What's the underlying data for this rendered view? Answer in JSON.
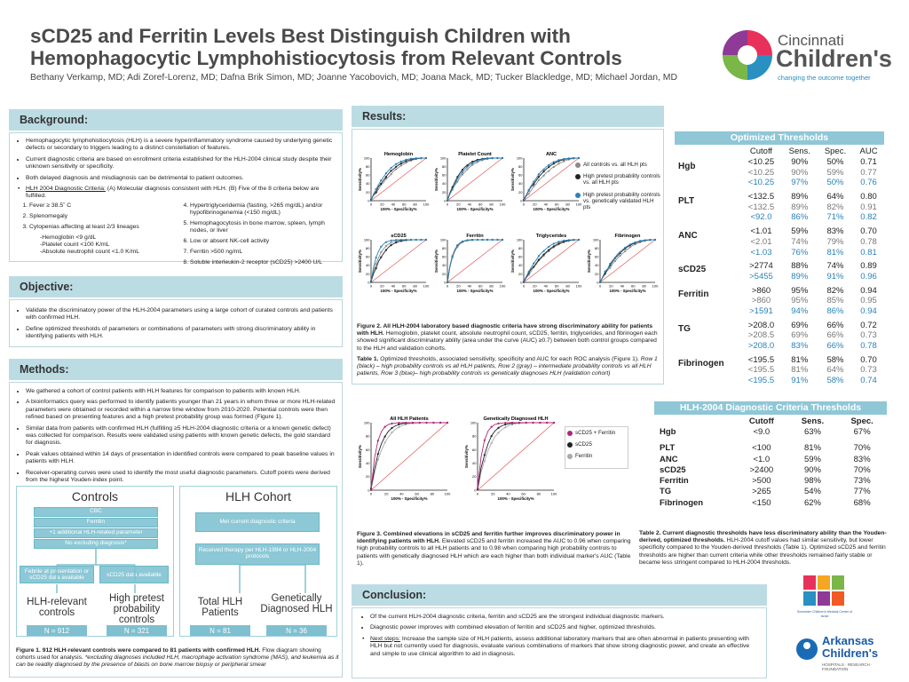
{
  "title": "sCD25 and Ferritin Levels Best Distinguish Children with Hemophagocytic Lymphohistiocytosis from Relevant Controls",
  "authors": "Bethany Verkamp, MD; Adi Zoref-Lorenz, MD; Dafna Brik Simon, MD; Joanne Yacobovich, MD; Joana Mack, MD; Tucker Blackledge, MD; Michael Jordan, MD",
  "logo_cincinnati": {
    "line1": "Cincinnati",
    "line2": "Children's",
    "tagline": "changing the outcome together"
  },
  "logo_schneider": "Schneider Children's Medical Center of Israel",
  "logo_arkansas": {
    "line1": "Arkansas",
    "line2": "Children's",
    "tagline": "HOSPITALS · RESEARCH · FOUNDATION"
  },
  "background": {
    "header": "Background:",
    "bullets": [
      "Hemophagocytic lymphohistiocytosis (HLH) is a severe hyperinflammatory syndrome caused by underlying genetic defects or secondary to triggers leading to a distinct constellation of features.",
      "Current diagnostic criteria are based on enrollment criteria established for the HLH-2004 clinical study despite their unknown sensitivity or specificity.",
      "Both delayed diagnosis and misdiagnosis can be detrimental to patient outcomes."
    ],
    "criteria_lead_u": "HLH 2004 Diagnostic Criteria:",
    "criteria_lead_rest": " (A) Molecular diagnosis consistent with HLH. (B) Five of the 8 criteria below are fulfilled.",
    "criteria_left": [
      "Fever ≥ 38.5˚ C",
      "Splenomegaly",
      "Cytopenias affecting at least 2/3 lineages"
    ],
    "criteria_sub": [
      "-Hemoglobin <9 g/dL",
      "-Platelet count <100 K/mL",
      "-Absolute neutrophil count <1.0 K/mL"
    ],
    "criteria_right": [
      "Hypertriglyceridemia (fasting, >265 mg/dL) and/or hypofibrinogenemia (<150 mg/dL)",
      "Hemophagocytosis in bone marrow, spleen, lymph nodes, or liver",
      "Low or absent NK-cell activity",
      "Ferritin >500 ng/mL",
      "Soluble interleukin-2 receptor (sCD25) >2400 U/L"
    ]
  },
  "objective": {
    "header": "Objective:",
    "bullets": [
      "Validate the discriminatory power of the HLH-2004 parameters using a large cohort of curated controls and patients with confirmed HLH.",
      "Define optimized thresholds of parameters or combinations of parameters with strong discriminatory ability in identifying patients with HLH."
    ]
  },
  "methods": {
    "header": "Methods:",
    "bullets": [
      "We gathered a cohort of control patients with HLH features for comparison to patients with known HLH.",
      "A bioinformatics query was performed to identify patients younger than 21 years in whom three or more HLH-related parameters were obtained or recorded within a narrow time window from 2010-2020. Potential controls were then refined based on presenting features and a high pretest probability group was formed (Figure 1).",
      "Similar data from patients with confirmed HLH (fulfilling ≥5 HLH-2004 diagnostic criteria or a known genetic defect) was collected for comparison. Results were validated using patients with known genetic defects, the gold standard for diagnosis.",
      "Peak values obtained within 14 days of presentation in identified controls were compared to peak baseline values in patients with HLH.",
      "Receiver-operating curves were used to identify the most useful diagnostic parameters. Cutoff points were derived from the highest Youden-index point."
    ]
  },
  "flow": {
    "controls_title": "Controls",
    "cohort_title": "HLH Cohort",
    "controls_boxes": [
      "CBC",
      "Ferritin",
      "+1 additional HLH-related parameter",
      "No excluding diagnosis*"
    ],
    "febrile": "Febrile at presentation or sCD25 data available",
    "scd25_avail": "sCD25 data available",
    "cohort_boxes": [
      "Met current diagnostic criteria",
      "Received therapy per HLH-1994 or HLH-2004 protocols"
    ],
    "groups": [
      {
        "label": "HLH-relevant controls",
        "n": "N = 912"
      },
      {
        "label": "High pretest probability controls",
        "n": "N = 321"
      },
      {
        "label": "Total HLH Patients",
        "n": "N = 81"
      },
      {
        "label": "Genetically Diagnosed HLH",
        "n": "N = 36"
      }
    ],
    "caption_bold": "Figure 1. 912 HLH-relevant controls were compared to 81 patients with confirmed HLH.",
    "caption_rest": " Flow diagram showing cohorts used for analysis. ",
    "caption_ital": "*excluding diagnoses included HLH, macrophage activation syndrome (MAS), and leukemia as it can be readily diagnosed by the presence of blasts on bone marrow biopsy or peripheral smear"
  },
  "results": {
    "header": "Results:",
    "axis_x": "100% - Specificity%",
    "axis_y": "Sensitivity%",
    "ticks": [
      "0",
      "20",
      "40",
      "60",
      "80",
      "100"
    ],
    "fig2_plots": [
      "Hemoglobin",
      "Platelet Count",
      "ANC",
      "sCD25",
      "Ferritin",
      "Triglycerides",
      "Fibrinogen"
    ],
    "fig2_legend": [
      "All controls vs. all HLH pts",
      "High pretest probability controls vs. all HLH pts",
      "High pretest probability controls vs. genetically validated HLH pts"
    ],
    "fig2_caption_bold": "Figure 2. All HLH-2004 laboratory based diagnostic criteria have strong discriminatory ability for patients with HLH.",
    "fig2_caption_rest": " Hemoglobin, platelet count, absolute neutrophil count, sCD25, ferritin, triglycerides, and fibrinogen each showed significant discriminatory ability (area under the curve (AUC) ≥0.7) between both control groups compared to the HLH and validation cohorts.",
    "tab1_caption_bold": "Table 1.",
    "tab1_caption_rest": " Optimized thresholds, associated sensitivity, specificity and AUC for each ROC analysis (Figure 1).",
    "tab1_caption_ital": " Row 1 (black) – high probability controls vs all HLH patients, Row 2 (gray) – intermediate probability controls vs all HLH patients, Row 3 (blue)– high probability controls vs genetically diagnoses HLH (validation cohort)",
    "fig3_plots": [
      "All HLH Patients",
      "Genetically Diagnosed HLH"
    ],
    "fig3_legend": [
      "sCD25 + Ferritin",
      "sCD25",
      "Ferritin"
    ],
    "fig3_caption_bold": "Figure 3. Combined elevations in sCD25 and ferritin further improves discriminatory power in identifying patients with HLH.",
    "fig3_caption_rest": " Elevated sCD25 and ferritin increased the AUC to 0.96 when comparing high probability controls to all HLH patients and to 0.98 when comparing high probability controls to patients with genetically diagnosed HLH which are each higher than both individual marker's AUC (Table 1).",
    "tab2_caption_bold": "Table 2. Current diagnostic thresholds have less discriminatory ability than the Youden-derived, optimized thresholds.",
    "tab2_caption_rest": " HLH-2004 cutoff values had similar sensitivity, but lower specificity compared to the Youden-derived thresholds (Table 1). Optimized sCD25 and ferritin thresholds are higher than current criteria while other thresholds remained fairly stable or became less stringent compared to HLH-2004 thresholds."
  },
  "table1": {
    "title": "Optimized Thresholds",
    "columns": [
      "Cutoff",
      "Sens.",
      "Spec.",
      "AUC"
    ],
    "groups": [
      {
        "label": "Hgb",
        "rows": [
          [
            "<10.25",
            "90%",
            "50%",
            "0.71"
          ],
          [
            "<10.25",
            "90%",
            "59%",
            "0.77"
          ],
          [
            "<10.25",
            "97%",
            "50%",
            "0.76"
          ]
        ]
      },
      {
        "label": "PLT",
        "rows": [
          [
            "<132.5",
            "89%",
            "64%",
            "0.80"
          ],
          [
            "<132.5",
            "89%",
            "82%",
            "0.91"
          ],
          [
            "<92.0",
            "86%",
            "71%",
            "0.82"
          ]
        ]
      },
      {
        "label": "ANC",
        "rows": [
          [
            "<1.01",
            "59%",
            "83%",
            "0.70"
          ],
          [
            "<2.01",
            "74%",
            "79%",
            "0.78"
          ],
          [
            "<1.03",
            "76%",
            "81%",
            "0.81"
          ]
        ]
      },
      {
        "label": "sCD25",
        "rows": [
          [
            ">2774",
            "88%",
            "74%",
            "0.89"
          ],
          [
            ">5455",
            "89%",
            "91%",
            "0.96"
          ]
        ]
      },
      {
        "label": "Ferritin",
        "rows": [
          [
            ">860",
            "95%",
            "82%",
            "0.94"
          ],
          [
            ">860",
            "95%",
            "85%",
            "0.95"
          ],
          [
            ">1591",
            "94%",
            "86%",
            "0.94"
          ]
        ]
      },
      {
        "label": "TG",
        "rows": [
          [
            ">208.0",
            "69%",
            "66%",
            "0.72"
          ],
          [
            ">208.5",
            "69%",
            "66%",
            "0.73"
          ],
          [
            ">208.0",
            "83%",
            "66%",
            "0.78"
          ]
        ]
      },
      {
        "label": "Fibrinogen",
        "rows": [
          [
            "<195.5",
            "81%",
            "58%",
            "0.70"
          ],
          [
            "<195.5",
            "81%",
            "64%",
            "0.73"
          ],
          [
            "<195.5",
            "91%",
            "58%",
            "0.74"
          ]
        ]
      }
    ]
  },
  "table2": {
    "title": "HLH-2004 Diagnostic Criteria Thresholds",
    "columns": [
      "Cutoff",
      "Sens.",
      "Spec."
    ],
    "rows": [
      [
        "Hgb",
        "<9.0",
        "63%",
        "67%"
      ],
      [
        "PLT",
        "<100",
        "81%",
        "70%"
      ],
      [
        "ANC",
        "<1.0",
        "59%",
        "83%"
      ],
      [
        "sCD25",
        ">2400",
        "90%",
        "70%"
      ],
      [
        "Ferritin",
        ">500",
        "98%",
        "73%"
      ],
      [
        "TG",
        ">265",
        "54%",
        "77%"
      ],
      [
        "Fibrinogen",
        "<150",
        "62%",
        "68%"
      ]
    ]
  },
  "conclusion": {
    "header": "Conclusion:",
    "bullets": [
      "Of the current HLH-2004 diagnostic criteria, ferritin and sCD25 are the strongest individual diagnostic markers.",
      "Diagnostic power improves with combined elevation of ferritin and sCD25 and higher, optimized thresholds."
    ],
    "next_steps_u": "Next steps:",
    "next_steps_rest": " Increase the sample size of HLH patients, assess additional laboratory markers that are often abnormal in patients presenting with HLH but not currently used for diagnosis, evaluate various combinations of markers that show strong diagnostic power, and create an effective and simple to use clinical algorithm to aid in diagnosis."
  },
  "colors": {
    "black": "#222222",
    "gray": "#8a8a8a",
    "blue": "#2a82b8",
    "magenta": "#b0267a",
    "accent": "#bcdce4"
  }
}
